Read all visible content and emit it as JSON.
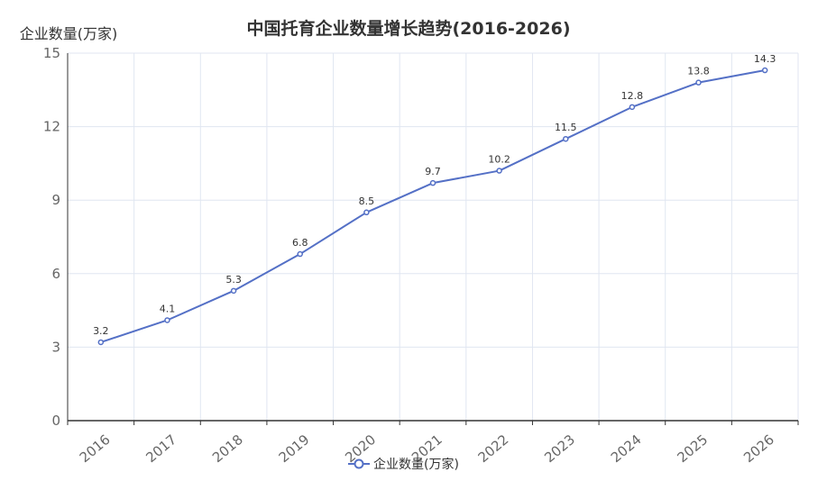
{
  "chart_data": {
    "type": "line",
    "title": "中国托育企业数量增长趋势(2016-2026)",
    "ylabel": "企业数量(万家)",
    "xlabel": "",
    "categories": [
      "2016",
      "2017",
      "2018",
      "2019",
      "2020",
      "2021",
      "2022",
      "2023",
      "2024",
      "2025",
      "2026"
    ],
    "series": [
      {
        "name": "企业数量(万家)",
        "values": [
          3.2,
          4.1,
          5.3,
          6.8,
          8.5,
          9.7,
          10.2,
          11.5,
          12.8,
          13.8,
          14.3
        ],
        "color": "#5470c6"
      }
    ],
    "ylim": [
      0,
      15
    ],
    "yticks": [
      0,
      3,
      6,
      9,
      12,
      15
    ],
    "grid": true,
    "legend_position": "bottom-center"
  }
}
